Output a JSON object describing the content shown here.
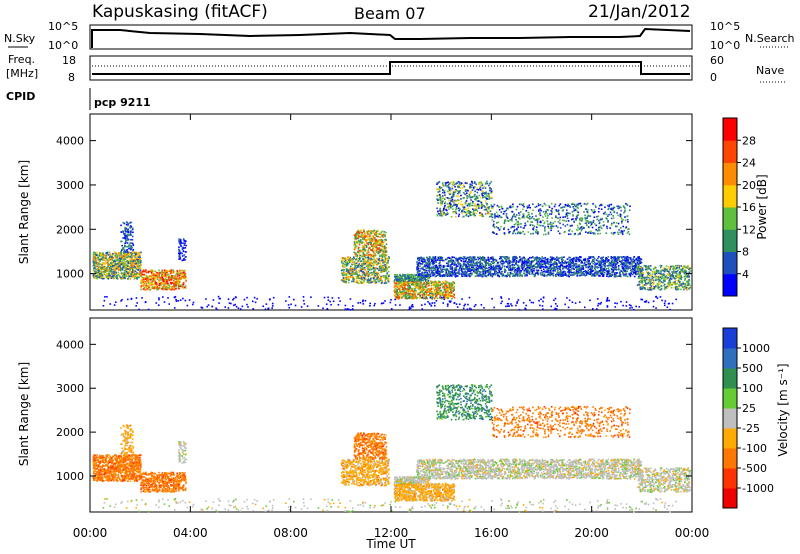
{
  "header": {
    "station": "Kapuskasing (fitACF)",
    "beam": "Beam 07",
    "date": "21/Jan/2012"
  },
  "noise_panel": {
    "left_label": "N.Sky",
    "right_label": "N.Search",
    "tick_top": "10^5",
    "tick_bottom": "10^0"
  },
  "freq_panel": {
    "left_label_1": "Freq.",
    "left_label_2": "[MHz]",
    "right_label": "Nave",
    "left_ticks": [
      "18",
      "8"
    ],
    "right_ticks": [
      "60",
      "0"
    ]
  },
  "cpid": {
    "label": "CPID",
    "value": "pcp 9211"
  },
  "colors": {
    "power": [
      "#0000ff",
      "#1f4fbf",
      "#2f8f5f",
      "#5fbf3f",
      "#ffcc00",
      "#ff8c00",
      "#ff4500",
      "#ff0000"
    ],
    "velocity": [
      "#1a3fd9",
      "#2f6fbf",
      "#2f8f4f",
      "#66cc33",
      "#bfbfbf",
      "#ffaa00",
      "#ff7700",
      "#ff3300",
      "#ee0000"
    ]
  },
  "chart_data": [
    {
      "type": "heatmap",
      "quantity": "Power",
      "ylabel": "Slant Range [km]",
      "y_ticks": [
        "1000",
        "2000",
        "3000",
        "4000"
      ],
      "ylim": [
        180,
        4600
      ],
      "xlim": [
        "00:00",
        "24:00"
      ],
      "colorbar_label": "Power [dB]",
      "colorbar_ticks": [
        "4",
        "8",
        "12",
        "16",
        "20",
        "24",
        "28"
      ],
      "colorbar_range": [
        0,
        32
      ]
    },
    {
      "type": "heatmap",
      "quantity": "Velocity",
      "ylabel": "Slant Range [km]",
      "y_ticks": [
        "1000",
        "2000",
        "3000",
        "4000"
      ],
      "ylim": [
        180,
        4600
      ],
      "xlim": [
        "00:00",
        "24:00"
      ],
      "xlabel": "Time UT",
      "x_ticks": [
        "00:00",
        "04:00",
        "08:00",
        "12:00",
        "16:00",
        "20:00",
        "00:00"
      ],
      "colorbar_label": "Velocity [m s⁻¹]",
      "colorbar_ticks": [
        "1000",
        "500",
        "100",
        "25",
        "-25",
        "-100",
        "-500",
        "-1000"
      ]
    }
  ]
}
